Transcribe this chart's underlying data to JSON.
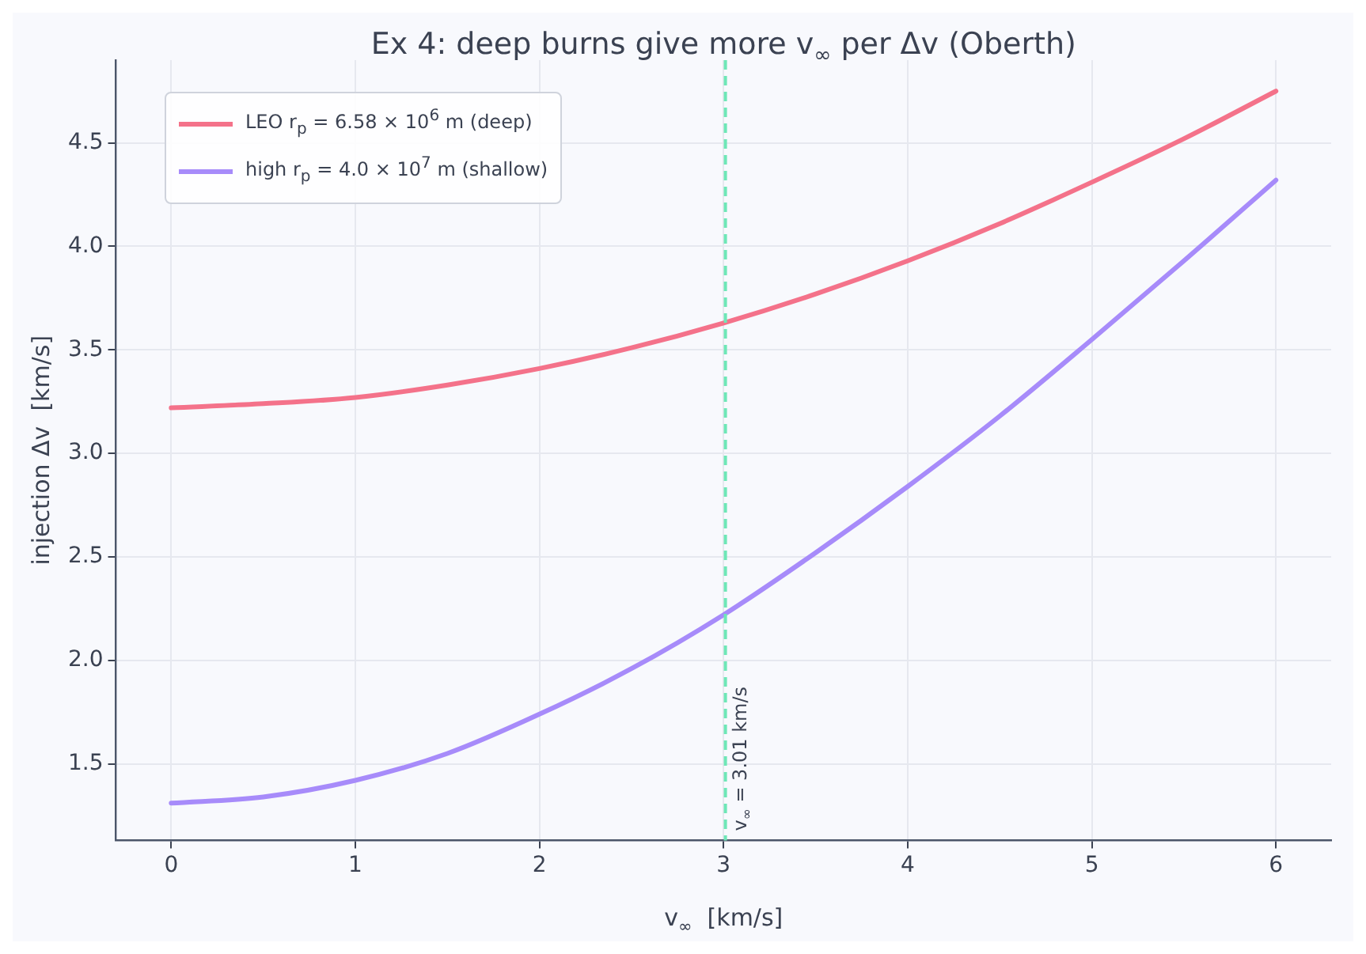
{
  "chart_data": {
    "type": "line",
    "title": "Ex 4: deep burns give more v$_{∞}$ per Δv (Oberth)",
    "xlabel": "v$_{∞}$  [km/s]",
    "ylabel": "injection Δv  [km/s]",
    "series": [
      {
        "name": "LEO r$_{p}$ = 6.58 × 10$^{6}$ m (deep)",
        "color": "#f4728a",
        "x": [
          0,
          0.5,
          1,
          1.5,
          2,
          2.5,
          3,
          3.5,
          4,
          4.5,
          5,
          5.5,
          6
        ],
        "values": [
          3.22,
          3.24,
          3.27,
          3.33,
          3.41,
          3.51,
          3.63,
          3.77,
          3.93,
          4.11,
          4.31,
          4.52,
          4.75
        ]
      },
      {
        "name": "high r$_{p}$ = 4.0 × 10$^{7}$ m (shallow)",
        "color": "#a78bfa",
        "x": [
          0,
          0.5,
          1,
          1.5,
          2,
          2.5,
          3,
          3.5,
          4,
          4.5,
          5,
          5.5,
          6
        ],
        "values": [
          1.31,
          1.34,
          1.42,
          1.55,
          1.74,
          1.96,
          2.22,
          2.52,
          2.84,
          3.18,
          3.55,
          3.93,
          4.32
        ]
      }
    ],
    "xlim": [
      -0.3,
      6.3
    ],
    "ylim": [
      1.13,
      4.9
    ],
    "xticks": [
      0,
      1,
      2,
      3,
      4,
      5,
      6
    ],
    "yticks": [
      1.5,
      {
        "value": 2,
        "label": "2.0"
      },
      2.5,
      {
        "value": 3,
        "label": "3.0"
      },
      3.5,
      {
        "value": 4,
        "label": "4.0"
      },
      4.5
    ],
    "ref_lines": [
      {
        "axis": "x",
        "value": 3.01,
        "label": "v$_{∞}$ = 3.01 km/s",
        "color": "#6ee7b7",
        "line_style": "dashed"
      }
    ],
    "grid": true,
    "legend": "top left",
    "line_style": "solid",
    "marker": "none"
  }
}
